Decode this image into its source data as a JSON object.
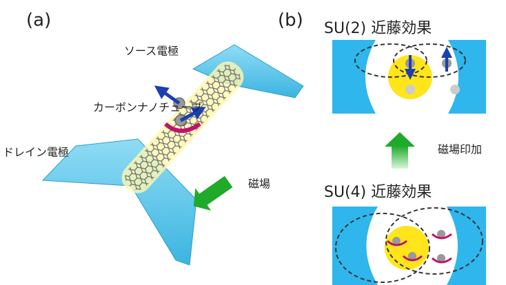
{
  "panels": {
    "a": {
      "label": "(a)",
      "source": "ソース電極",
      "nanotube": "カーボンナノチューブ",
      "drain": "ドレイン電極",
      "field": "磁場"
    },
    "b": {
      "label": "(b)",
      "su2": "SU(2) 近藤効果",
      "transition": "磁場印加",
      "su4": "SU(4) 近藤効果"
    }
  }
}
